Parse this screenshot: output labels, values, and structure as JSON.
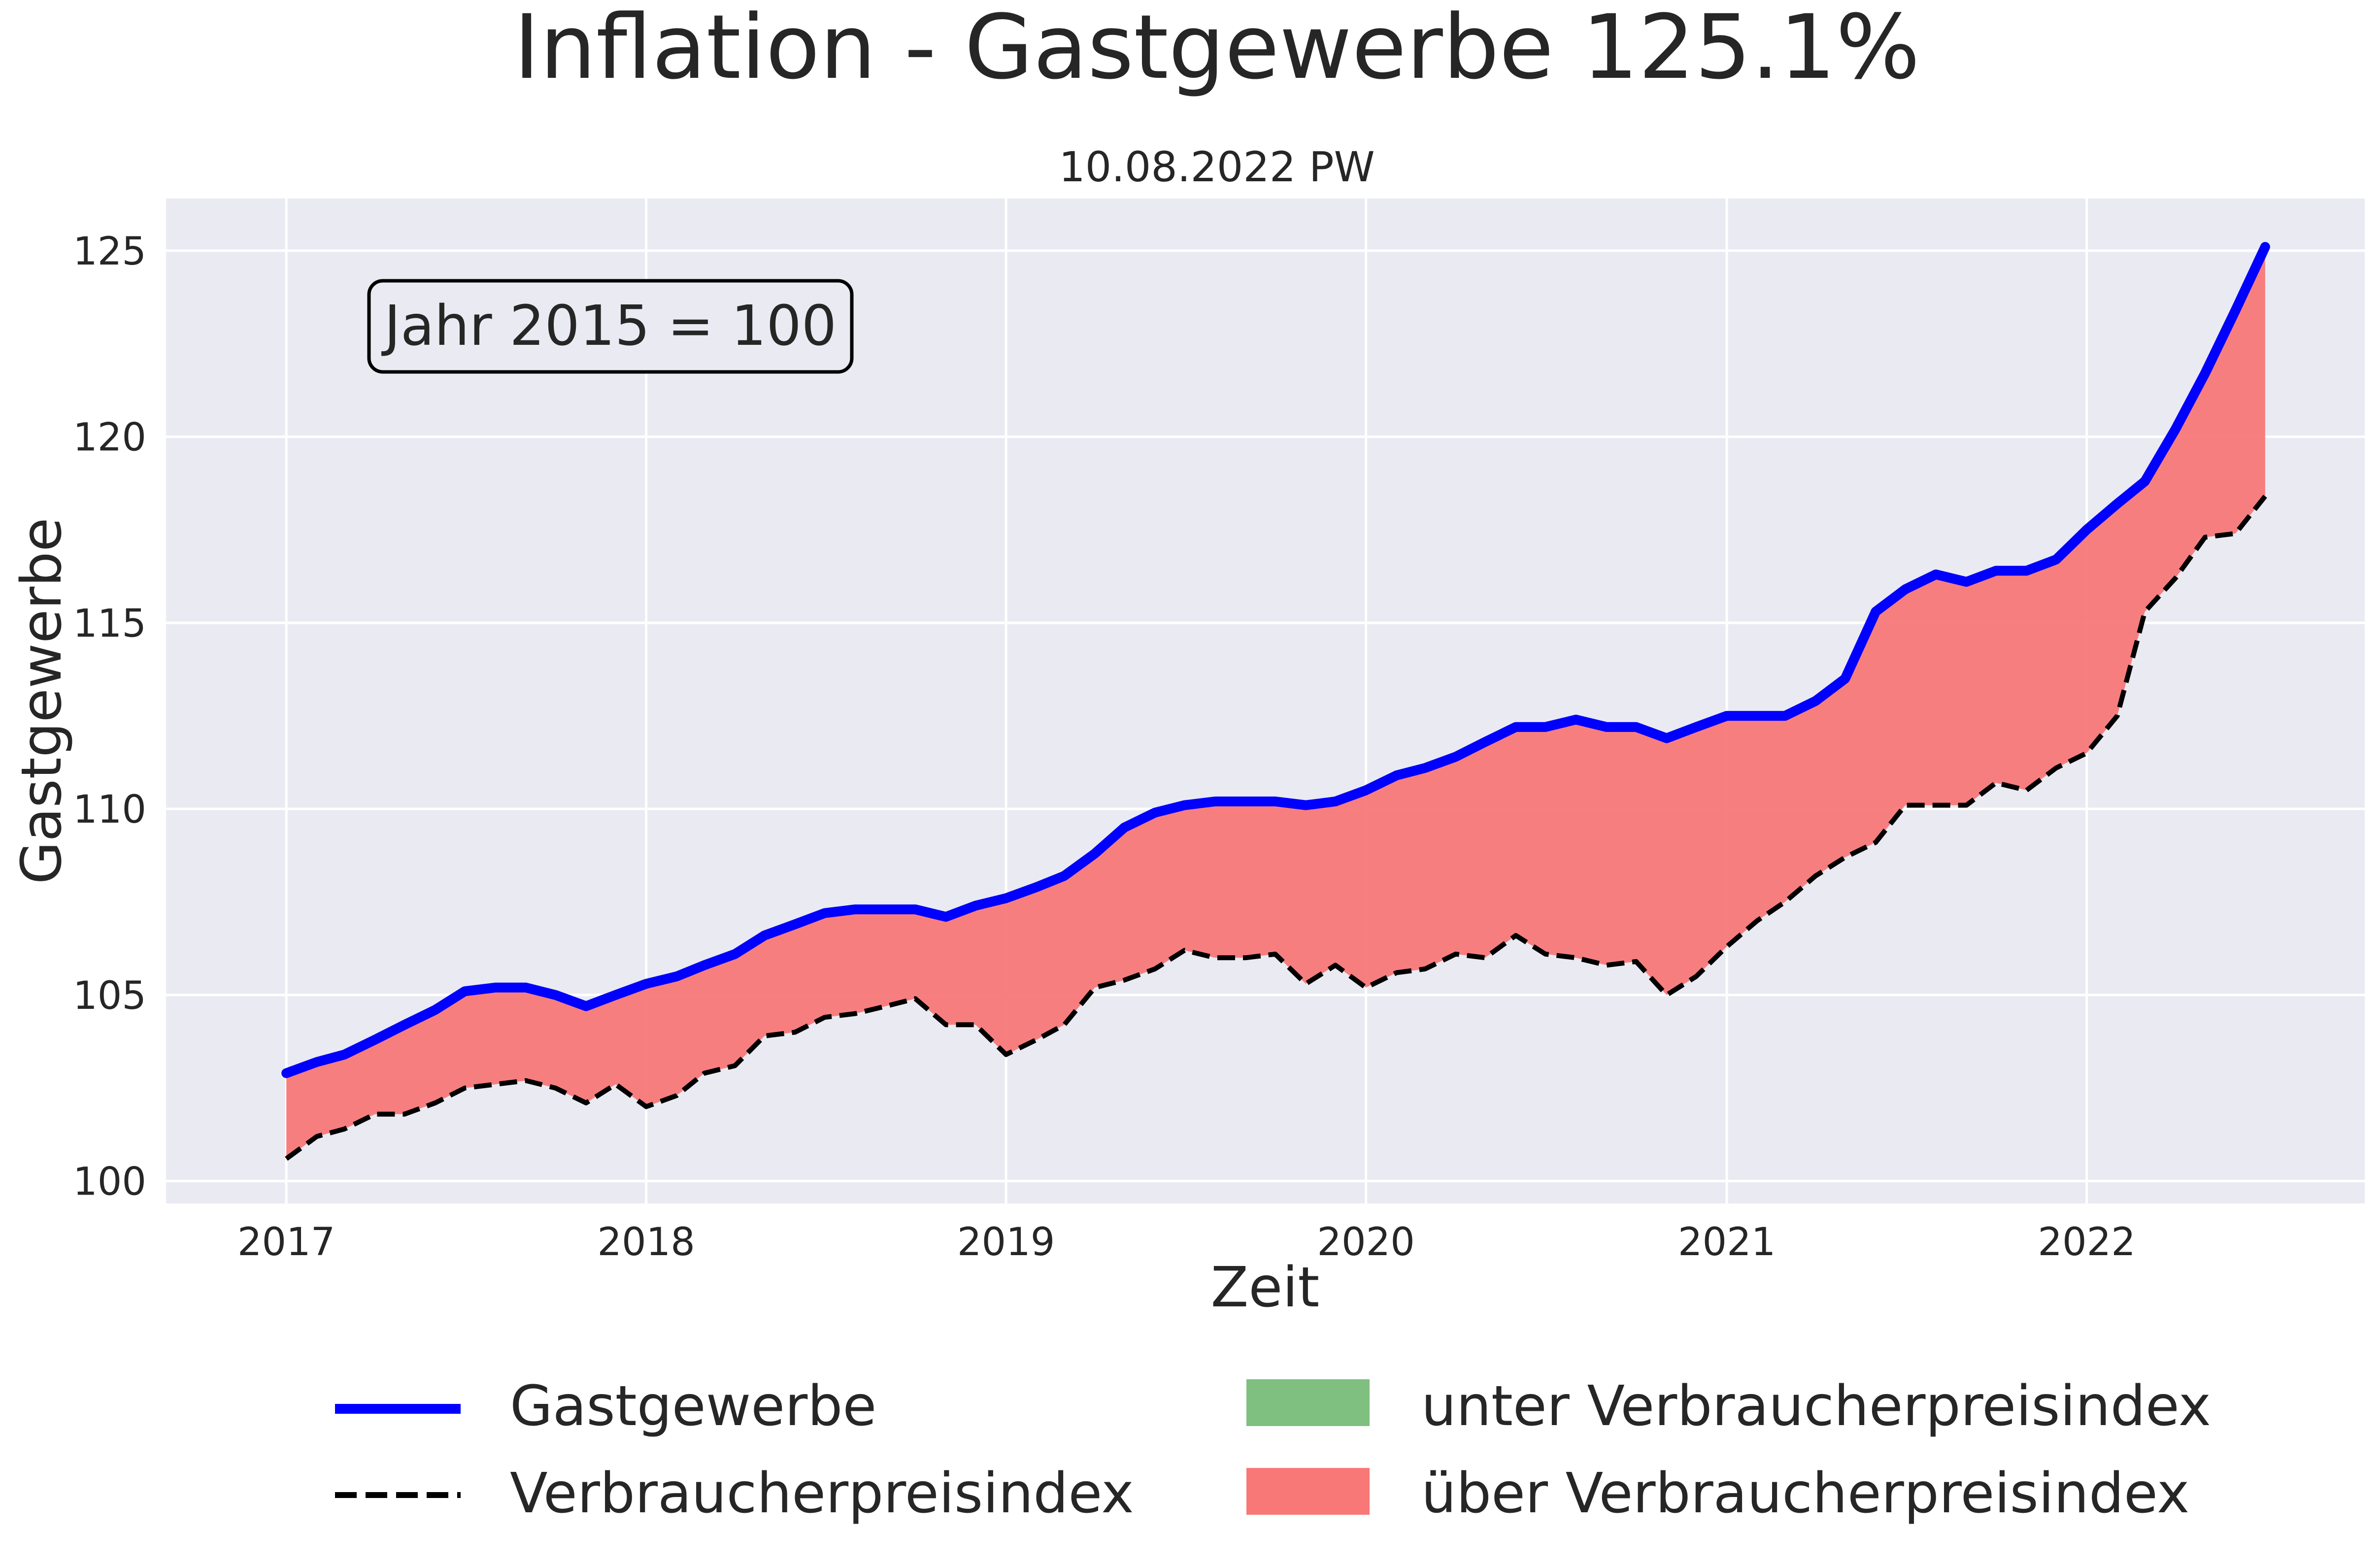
{
  "chart_data": {
    "type": "line",
    "title": "Inflation - Gastgewerbe 125.1%",
    "subtitle": "10.08.2022 PW",
    "xlabel": "Zeit",
    "ylabel": "Gastgewerbe",
    "annotation": "Jahr 2015 = 100",
    "xlim": [
      "2016-09-01",
      "2022-10-10"
    ],
    "ylim": [
      99.4,
      126.4
    ],
    "x_ticks": [
      {
        "date": "2017-01-01",
        "label": "2017"
      },
      {
        "date": "2018-01-01",
        "label": "2018"
      },
      {
        "date": "2019-01-01",
        "label": "2019"
      },
      {
        "date": "2020-01-01",
        "label": "2020"
      },
      {
        "date": "2021-01-01",
        "label": "2021"
      },
      {
        "date": "2022-01-01",
        "label": "2022"
      }
    ],
    "y_ticks": [
      {
        "value": 100,
        "label": "100"
      },
      {
        "value": 105,
        "label": "105"
      },
      {
        "value": 110,
        "label": "110"
      },
      {
        "value": 115,
        "label": "115"
      },
      {
        "value": 120,
        "label": "120"
      },
      {
        "value": 125,
        "label": "125"
      }
    ],
    "grid": true,
    "legend_position": "bottom",
    "x": [
      "2017-01",
      "2017-02",
      "2017-03",
      "2017-04",
      "2017-05",
      "2017-06",
      "2017-07",
      "2017-08",
      "2017-09",
      "2017-10",
      "2017-11",
      "2017-12",
      "2018-01",
      "2018-02",
      "2018-03",
      "2018-04",
      "2018-05",
      "2018-06",
      "2018-07",
      "2018-08",
      "2018-09",
      "2018-10",
      "2018-11",
      "2018-12",
      "2019-01",
      "2019-02",
      "2019-03",
      "2019-04",
      "2019-05",
      "2019-06",
      "2019-07",
      "2019-08",
      "2019-09",
      "2019-10",
      "2019-11",
      "2019-12",
      "2020-01",
      "2020-02",
      "2020-03",
      "2020-04",
      "2020-05",
      "2020-06",
      "2020-07",
      "2020-08",
      "2020-09",
      "2020-10",
      "2020-11",
      "2020-12",
      "2021-01",
      "2021-02",
      "2021-03",
      "2021-04",
      "2021-05",
      "2021-06",
      "2021-07",
      "2021-08",
      "2021-09",
      "2021-10",
      "2021-11",
      "2021-12",
      "2022-01",
      "2022-02",
      "2022-03",
      "2022-04",
      "2022-05",
      "2022-06",
      "2022-07"
    ],
    "series": [
      {
        "name": "Gastgewerbe",
        "color": "#0000ff",
        "style": "solid",
        "values": [
          102.9,
          103.2,
          103.4,
          103.8,
          104.2,
          104.6,
          105.1,
          105.2,
          105.2,
          105.0,
          104.7,
          105.0,
          105.3,
          105.5,
          105.8,
          106.1,
          106.6,
          106.9,
          107.2,
          107.3,
          107.3,
          107.3,
          107.1,
          107.4,
          107.6,
          107.9,
          108.2,
          108.8,
          109.5,
          109.9,
          110.1,
          110.2,
          110.2,
          110.2,
          110.1,
          110.2,
          110.5,
          110.9,
          111.1,
          111.4,
          111.8,
          112.2,
          112.2,
          112.4,
          112.2,
          112.2,
          111.9,
          112.2,
          112.5,
          112.5,
          112.5,
          112.9,
          113.5,
          115.3,
          115.9,
          116.3,
          116.1,
          116.4,
          116.4,
          116.7,
          117.5,
          118.2,
          118.8,
          120.2,
          121.7,
          123.4,
          125.1
        ]
      },
      {
        "name": "Verbraucherpreisindex",
        "color": "#000000",
        "style": "dashed",
        "values": [
          100.6,
          101.2,
          101.4,
          101.8,
          101.8,
          102.1,
          102.5,
          102.6,
          102.7,
          102.5,
          102.1,
          102.6,
          102.0,
          102.3,
          102.9,
          103.1,
          103.9,
          104.0,
          104.4,
          104.5,
          104.7,
          104.9,
          104.2,
          104.2,
          103.4,
          103.8,
          104.2,
          105.2,
          105.4,
          105.7,
          106.2,
          106.0,
          106.0,
          106.1,
          105.3,
          105.8,
          105.2,
          105.6,
          105.7,
          106.1,
          106.0,
          106.6,
          106.1,
          106.0,
          105.8,
          105.9,
          105.0,
          105.5,
          106.3,
          107.0,
          107.5,
          108.2,
          108.7,
          109.1,
          110.1,
          110.1,
          110.1,
          110.7,
          110.5,
          111.1,
          111.5,
          112.5,
          115.3,
          116.2,
          117.3,
          117.4,
          118.4
        ]
      }
    ],
    "fills": [
      {
        "name": "unter Verbraucherpreisindex",
        "color": "#7fbf7f"
      },
      {
        "name": "über Verbraucherpreisindex",
        "color": "#f87878"
      }
    ]
  }
}
